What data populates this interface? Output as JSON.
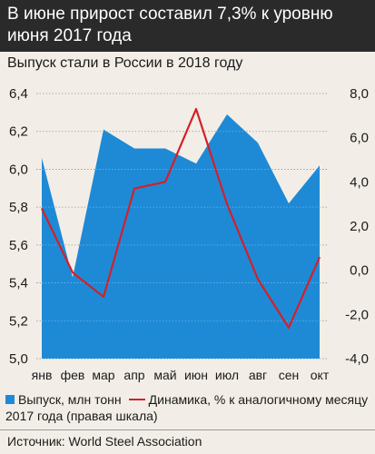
{
  "header": {
    "title": "В июне прирост составил 7,3% к уровню июня 2017 года"
  },
  "chart_data": {
    "type": "area+line",
    "title": "Выпуск стали в России в 2018 году",
    "categories": [
      "янв",
      "фев",
      "мар",
      "апр",
      "май",
      "июн",
      "июл",
      "авг",
      "сен",
      "окт"
    ],
    "series": [
      {
        "name": "Выпуск, млн тонн",
        "type": "area",
        "axis": "left",
        "color": "#1e8ad6",
        "values": [
          6.06,
          5.43,
          6.21,
          6.11,
          6.11,
          6.03,
          6.29,
          6.14,
          5.82,
          6.02
        ]
      },
      {
        "name": "Динамика, % к аналогичному месяцу 2017 года (правая шкала)",
        "type": "line",
        "axis": "right",
        "color": "#d42028",
        "values": [
          2.8,
          -0.1,
          -1.2,
          3.7,
          4.0,
          7.3,
          3.0,
          -0.4,
          -2.6,
          0.6
        ]
      }
    ],
    "yleft": {
      "min": 5.0,
      "max": 6.4,
      "ticks": [
        "5,0",
        "5,2",
        "5,4",
        "5,6",
        "5,8",
        "6,0",
        "6,2",
        "6,4"
      ]
    },
    "yright": {
      "min": -4.0,
      "max": 8.0,
      "ticks": [
        "-4,0",
        "-2,0",
        "0,0",
        "2,0",
        "4,0",
        "6,0",
        "8,0"
      ]
    },
    "grid": true
  },
  "legend": {
    "area_label": "Выпуск, млн тонн",
    "line_label": "Динамика, % к аналогичному месяцу 2017 года (правая шкала)"
  },
  "source": "Источник: World Steel Association"
}
